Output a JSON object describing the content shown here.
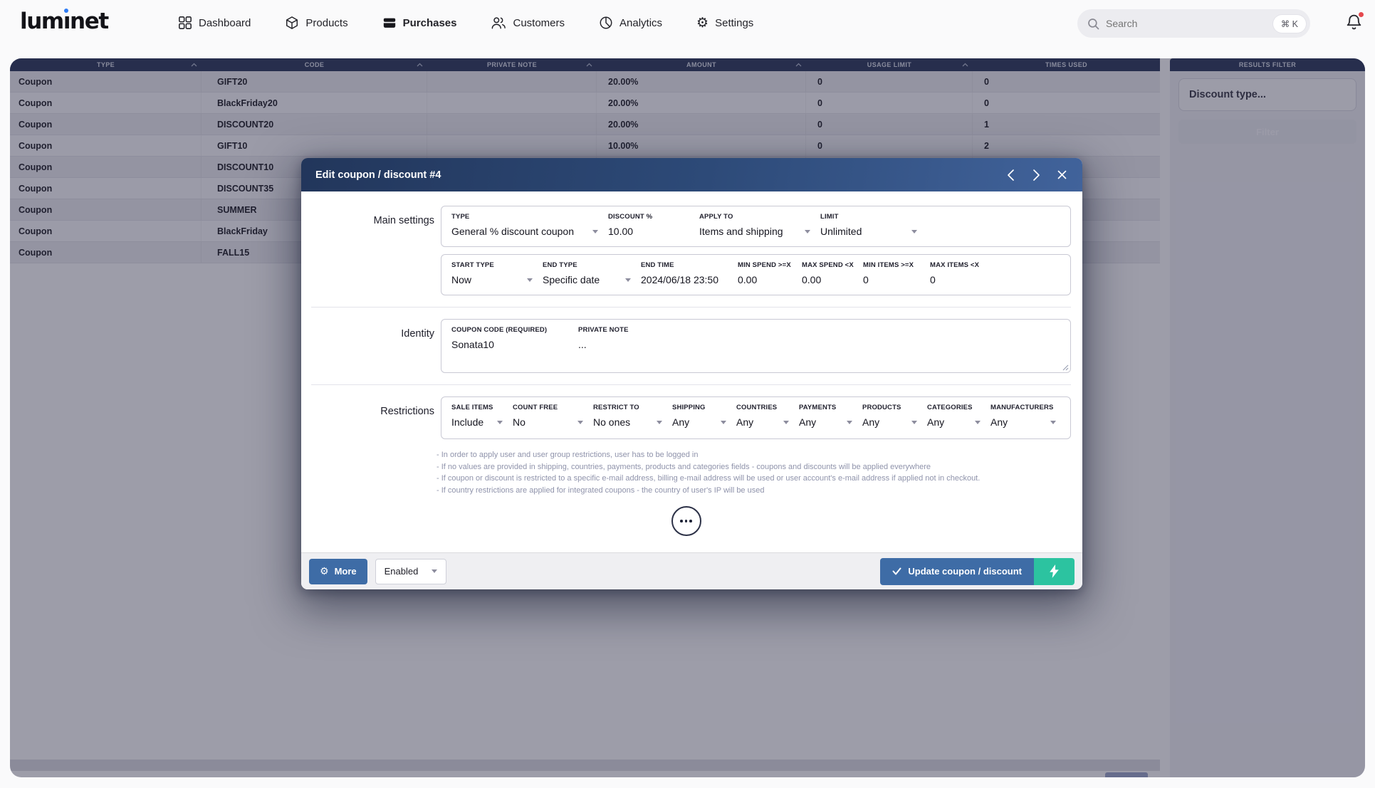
{
  "brand": {
    "name": "luminet"
  },
  "colors": {
    "accent_blue": "#3e6ca6",
    "action_teal": "#2cc3a0",
    "table_header_navy": "#1e2b4f",
    "modal_header_gradient": [
      "#22365b",
      "#41639b"
    ],
    "notification_red": "#e5484d",
    "logo_dot_blue": "#2f7df6"
  },
  "nav": {
    "items": [
      {
        "label": "Dashboard",
        "icon": "dashboard-icon",
        "active": false
      },
      {
        "label": "Products",
        "icon": "products-icon",
        "active": false
      },
      {
        "label": "Purchases",
        "icon": "purchases-icon",
        "active": true
      },
      {
        "label": "Customers",
        "icon": "customers-icon",
        "active": false
      },
      {
        "label": "Analytics",
        "icon": "analytics-icon",
        "active": false
      },
      {
        "label": "Settings",
        "icon": "settings-icon",
        "active": false
      }
    ],
    "search": {
      "placeholder": "Search",
      "shortcut": "⌘ K"
    }
  },
  "table": {
    "columns": [
      {
        "label": "TYPE",
        "sortable": true
      },
      {
        "label": "CODE",
        "sortable": true
      },
      {
        "label": "PRIVATE NOTE",
        "sortable": true
      },
      {
        "label": "AMOUNT",
        "sortable": true
      },
      {
        "label": "USAGE LIMIT",
        "sortable": true
      },
      {
        "label": "TIMES USED",
        "sortable": false
      }
    ],
    "rows": [
      {
        "type": "Coupon",
        "code": "GIFT20",
        "private_note": "",
        "amount": "20.00%",
        "usage_limit": "0",
        "times_used": "0"
      },
      {
        "type": "Coupon",
        "code": "BlackFriday20",
        "private_note": "",
        "amount": "20.00%",
        "usage_limit": "0",
        "times_used": "0"
      },
      {
        "type": "Coupon",
        "code": "DISCOUNT20",
        "private_note": "",
        "amount": "20.00%",
        "usage_limit": "0",
        "times_used": "1"
      },
      {
        "type": "Coupon",
        "code": "GIFT10",
        "private_note": "",
        "amount": "10.00%",
        "usage_limit": "0",
        "times_used": "2"
      },
      {
        "type": "Coupon",
        "code": "DISCOUNT10",
        "private_note": "",
        "amount": "",
        "usage_limit": "",
        "times_used": ""
      },
      {
        "type": "Coupon",
        "code": "DISCOUNT35",
        "private_note": "",
        "amount": "",
        "usage_limit": "",
        "times_used": ""
      },
      {
        "type": "Coupon",
        "code": "SUMMER",
        "private_note": "",
        "amount": "",
        "usage_limit": "",
        "times_used": ""
      },
      {
        "type": "Coupon",
        "code": "BlackFriday",
        "private_note": "",
        "amount": "",
        "usage_limit": "",
        "times_used": ""
      },
      {
        "type": "Coupon",
        "code": "FALL15",
        "private_note": "",
        "amount": "",
        "usage_limit": "",
        "times_used": ""
      }
    ]
  },
  "filter_panel": {
    "title": "RESULTS FILTER",
    "discount_type_value": "Discount type...",
    "filter_button_label": "Filter"
  },
  "modal": {
    "title": "Edit coupon / discount #4",
    "sections": {
      "main": {
        "label": "Main settings",
        "row1": [
          {
            "label": "TYPE",
            "value": "General % discount coupon",
            "control": "select"
          },
          {
            "label": "DISCOUNT %",
            "value": "10.00",
            "control": "text"
          },
          {
            "label": "APPLY TO",
            "value": "Items and shipping",
            "control": "select"
          },
          {
            "label": "LIMIT",
            "value": "Unlimited",
            "control": "select"
          }
        ],
        "row2": [
          {
            "label": "START TYPE",
            "value": "Now",
            "control": "select"
          },
          {
            "label": "END TYPE",
            "value": "Specific date",
            "control": "select"
          },
          {
            "label": "END TIME",
            "value": "2024/06/18 23:50",
            "control": "text"
          },
          {
            "label": "MIN SPEND >=X",
            "value": "0.00",
            "control": "text"
          },
          {
            "label": "MAX SPEND <X",
            "value": "0.00",
            "control": "text"
          },
          {
            "label": "MIN ITEMS >=X",
            "value": "0",
            "control": "text"
          },
          {
            "label": "MAX ITEMS <X",
            "value": "0",
            "control": "text"
          }
        ]
      },
      "identity": {
        "label": "Identity",
        "fields": [
          {
            "label": "COUPON CODE (REQUIRED)",
            "value": "Sonata10",
            "control": "text"
          },
          {
            "label": "PRIVATE NOTE",
            "value": "...",
            "control": "text"
          }
        ]
      },
      "restrictions": {
        "label": "Restrictions",
        "fields": [
          {
            "label": "SALE ITEMS",
            "value": "Include",
            "control": "select"
          },
          {
            "label": "COUNT FREE",
            "value": "No",
            "control": "select"
          },
          {
            "label": "RESTRICT TO",
            "value": "No ones",
            "control": "select"
          },
          {
            "label": "SHIPPING",
            "value": "Any",
            "control": "select"
          },
          {
            "label": "COUNTRIES",
            "value": "Any",
            "control": "select"
          },
          {
            "label": "PAYMENTS",
            "value": "Any",
            "control": "select"
          },
          {
            "label": "PRODUCTS",
            "value": "Any",
            "control": "select"
          },
          {
            "label": "CATEGORIES",
            "value": "Any",
            "control": "select"
          },
          {
            "label": "MANUFACTURERS",
            "value": "Any",
            "control": "select"
          }
        ]
      }
    },
    "hints": [
      "- In order to apply user and user group restrictions, user has to be logged in",
      "- If no values are provided in shipping, countries, payments, products and categories fields - coupons and discounts will be applied everywhere",
      "- If coupon or discount is restricted to a specific e-mail address, billing e-mail address will be used or user account's e-mail address if applied not in checkout.",
      "- If country restrictions are applied for integrated coupons - the country of user's IP will be used"
    ],
    "footer": {
      "more_label": "More",
      "status_value": "Enabled",
      "update_label": "Update coupon / discount"
    }
  }
}
